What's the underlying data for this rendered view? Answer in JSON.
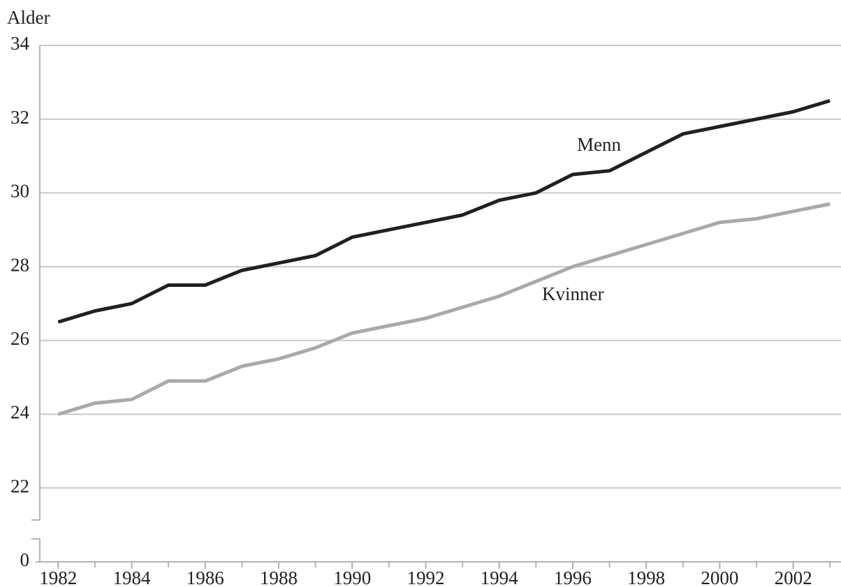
{
  "chart_data": {
    "type": "line",
    "y_axis_label": "Alder",
    "x": [
      1982,
      1983,
      1984,
      1985,
      1986,
      1987,
      1988,
      1989,
      1990,
      1991,
      1992,
      1993,
      1994,
      1995,
      1996,
      1997,
      1998,
      1999,
      2000,
      2001,
      2002,
      2003
    ],
    "series": [
      {
        "name": "Menn",
        "color": "#231f20",
        "values": [
          26.5,
          26.8,
          27.0,
          27.5,
          27.5,
          27.9,
          28.1,
          28.3,
          28.8,
          29.0,
          29.2,
          29.4,
          29.8,
          30.0,
          30.5,
          30.6,
          31.1,
          31.6,
          31.8,
          32.0,
          32.2,
          32.5
        ]
      },
      {
        "name": "Kvinner",
        "color": "#a7a9ac",
        "values": [
          24.0,
          24.3,
          24.4,
          24.9,
          24.9,
          25.3,
          25.5,
          25.8,
          26.2,
          26.4,
          26.6,
          26.9,
          27.2,
          27.6,
          28.0,
          28.3,
          28.6,
          28.9,
          29.2,
          29.3,
          29.5,
          29.7
        ]
      }
    ],
    "xlim": [
      1981.5,
      2003.3
    ],
    "xticks": [
      1982,
      1984,
      1986,
      1988,
      1990,
      1992,
      1994,
      1996,
      1998,
      2000,
      2002
    ],
    "ylim": [
      21,
      34
    ],
    "yticks": [
      0,
      22,
      24,
      26,
      28,
      30,
      32,
      34
    ],
    "axis_break": true,
    "grid": true
  }
}
